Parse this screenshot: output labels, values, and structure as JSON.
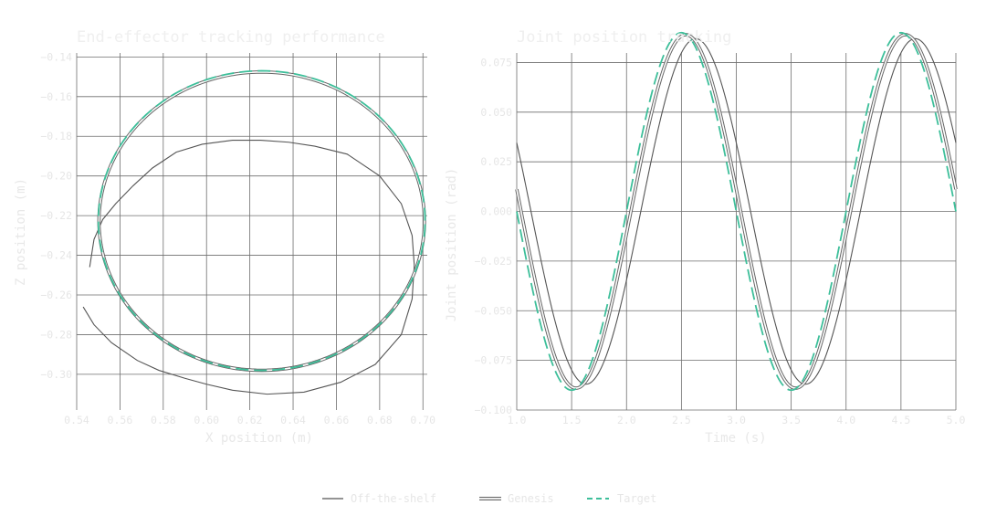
{
  "colors": {
    "offshelf": "#555555",
    "genesis_outer": "#666666",
    "genesis_inner": "#ffffff",
    "target": "#3dbf9a",
    "grid": "#6e6e6e",
    "text": "#e6e6e6"
  },
  "legend": {
    "placement": "bottom-center",
    "items": [
      {
        "label": "Off-the-shelf",
        "style": "solid-line"
      },
      {
        "label": "Genesis",
        "style": "double-line"
      },
      {
        "label": "Target",
        "style": "dashed-line"
      }
    ]
  },
  "chart_data": [
    {
      "type": "line",
      "title": "End-effector tracking performance",
      "xlabel": "X position (m)",
      "ylabel": "Z position (m)",
      "xlim": [
        0.54,
        0.702
      ],
      "ylim": [
        -0.318,
        -0.138
      ],
      "grid": true,
      "xticks": [
        0.54,
        0.56,
        0.58,
        0.6,
        0.62,
        0.64,
        0.66,
        0.68,
        0.7
      ],
      "xtick_labels": [
        "0.54",
        "0.56",
        "0.58",
        "0.60",
        "0.62",
        "0.64",
        "0.66",
        "0.68",
        "0.70"
      ],
      "yticks": [
        -0.14,
        -0.16,
        -0.18,
        -0.2,
        -0.22,
        -0.24,
        -0.26,
        -0.28,
        -0.3
      ],
      "ytick_labels": [
        "−0.14",
        "−0.16",
        "−0.18",
        "−0.20",
        "−0.22",
        "−0.24",
        "−0.26",
        "−0.28",
        "−0.30"
      ],
      "series": [
        {
          "name": "Target",
          "kind": "circle",
          "center": [
            0.6255,
            -0.2225
          ],
          "radius_x": 0.0755,
          "radius_y": 0.0755
        },
        {
          "name": "Genesis",
          "kind": "circle",
          "center": [
            0.6255,
            -0.2228
          ],
          "radius_x": 0.0752,
          "radius_y": 0.0752
        },
        {
          "name": "Off-the-shelf",
          "kind": "path",
          "x": [
            0.543,
            0.548,
            0.556,
            0.568,
            0.578,
            0.59,
            0.6,
            0.612,
            0.628,
            0.645,
            0.662,
            0.678,
            0.69,
            0.695,
            0.696,
            0.695,
            0.69,
            0.68,
            0.665,
            0.65,
            0.638,
            0.625,
            0.612,
            0.598,
            0.586,
            0.575,
            0.566,
            0.558,
            0.552,
            0.548,
            0.546
          ],
          "y": [
            -0.266,
            -0.275,
            -0.284,
            -0.293,
            -0.298,
            -0.302,
            -0.305,
            -0.308,
            -0.31,
            -0.309,
            -0.304,
            -0.295,
            -0.28,
            -0.262,
            -0.245,
            -0.23,
            -0.214,
            -0.2,
            -0.189,
            -0.185,
            -0.183,
            -0.182,
            -0.182,
            -0.184,
            -0.188,
            -0.196,
            -0.205,
            -0.214,
            -0.222,
            -0.232,
            -0.246
          ]
        }
      ]
    },
    {
      "type": "line",
      "title": "Joint position tracking",
      "xlabel": "Time (s)",
      "ylabel": "Joint position (rad)",
      "xlim": [
        1.0,
        5.0
      ],
      "ylim": [
        -0.1,
        0.0798
      ],
      "grid": true,
      "xticks": [
        1.0,
        1.5,
        2.0,
        2.5,
        3.0,
        3.5,
        4.0,
        4.5,
        5.0
      ],
      "xtick_labels": [
        "1.0",
        "1.5",
        "2.0",
        "2.5",
        "3.0",
        "3.5",
        "4.0",
        "4.5",
        "5.0"
      ],
      "yticks": [
        0.075,
        0.05,
        0.025,
        0.0,
        -0.025,
        -0.05,
        -0.075,
        -0.1
      ],
      "ytick_labels": [
        "0.075",
        "0.050",
        "0.025",
        "0.000",
        "−0.025",
        "−0.050",
        "−0.075",
        "−0.100"
      ],
      "series": [
        {
          "name": "Target",
          "function": "sine",
          "amplitude": 0.09,
          "period": 2.0,
          "phase_shift": 0.0
        },
        {
          "name": "Genesis",
          "function": "sine",
          "amplitude": 0.089,
          "period": 2.0,
          "phase_shift": 0.04
        },
        {
          "name": "Off-the-shelf",
          "function": "sine",
          "amplitude": 0.087,
          "period": 2.0,
          "phase_shift": 0.13
        }
      ]
    }
  ]
}
